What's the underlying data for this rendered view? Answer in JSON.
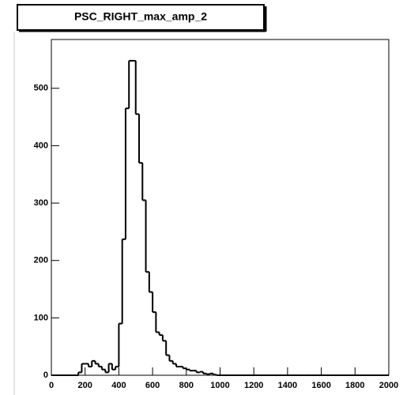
{
  "chart_data": {
    "type": "histogram",
    "title": "PSC_RIGHT_max_amp_2",
    "bins": [
      0,
      20,
      40,
      60,
      80,
      100,
      120,
      140,
      160,
      180,
      200,
      220,
      240,
      260,
      280,
      300,
      320,
      340,
      360,
      380,
      400,
      420,
      440,
      460,
      480,
      500,
      520,
      540,
      560,
      580,
      600,
      620,
      640,
      660,
      680,
      700,
      720,
      740,
      760,
      780,
      800,
      820,
      840,
      860,
      880,
      900,
      920,
      940,
      960,
      980,
      1000,
      1020,
      1040,
      1060,
      1080,
      1100,
      1120,
      1140,
      1160,
      1180,
      1200,
      1220,
      1240,
      1260,
      1280,
      1300,
      1320,
      1340,
      1360,
      1380,
      1400,
      1420,
      1440,
      1460,
      1480,
      1500,
      1520,
      1540,
      1560,
      1580,
      1600,
      1620,
      1640,
      1660,
      1680,
      1700,
      1720,
      1740,
      1760,
      1780,
      1800,
      1820,
      1840,
      1860,
      1880,
      1900,
      1920,
      1940,
      1960,
      1980,
      2000
    ],
    "values": [
      0,
      0,
      0,
      0,
      0,
      0,
      0,
      0,
      5,
      20,
      20,
      15,
      25,
      20,
      15,
      10,
      5,
      20,
      10,
      15,
      90,
      237,
      465,
      548,
      548,
      455,
      370,
      305,
      180,
      145,
      110,
      75,
      70,
      60,
      35,
      25,
      20,
      15,
      15,
      12,
      10,
      8,
      8,
      5,
      6,
      3,
      2,
      3,
      1,
      0,
      0,
      0,
      0,
      0,
      0,
      0,
      0,
      0,
      0,
      0,
      0,
      0,
      0,
      0,
      0,
      0,
      0,
      0,
      0,
      0,
      0,
      0,
      0,
      0,
      0,
      0,
      0,
      0,
      0,
      0,
      0,
      0,
      0,
      0,
      0,
      0,
      0,
      0,
      0,
      0,
      0,
      0,
      0,
      0,
      0,
      0,
      0,
      0,
      0,
      0
    ],
    "color": "#000000",
    "xlim": [
      0,
      2000
    ],
    "xticks": [
      0,
      200,
      400,
      600,
      800,
      1000,
      1200,
      1400,
      1600,
      1800,
      2000
    ],
    "ylim": [
      0,
      585
    ],
    "yticks": [
      0,
      100,
      200,
      300,
      400,
      500
    ]
  }
}
